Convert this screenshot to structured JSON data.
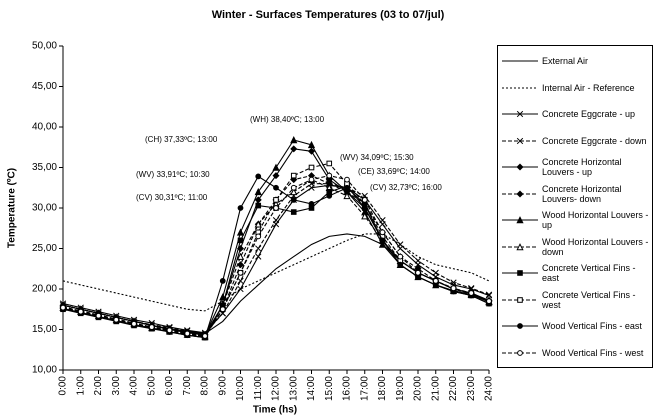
{
  "chart_data": {
    "type": "line",
    "title": "Winter - Surfaces Temperatures (03 to 07/jul)",
    "xlabel": "Time (hs)",
    "ylabel": "Temperature (ºC)",
    "x": [
      0,
      1,
      2,
      3,
      4,
      5,
      6,
      7,
      8,
      9,
      10,
      11,
      12,
      13,
      14,
      15,
      16,
      17,
      18,
      19,
      20,
      21,
      22,
      23,
      24
    ],
    "xlim": [
      0,
      24
    ],
    "xticks": [
      {
        "value": 0,
        "label": "0:00"
      },
      {
        "value": 1,
        "label": "1:00"
      },
      {
        "value": 2,
        "label": "2:00"
      },
      {
        "value": 3,
        "label": "3:00"
      },
      {
        "value": 4,
        "label": "4:00"
      },
      {
        "value": 5,
        "label": "5:00"
      },
      {
        "value": 6,
        "label": "6:00"
      },
      {
        "value": 7,
        "label": "7:00"
      },
      {
        "value": 8,
        "label": "8:00"
      },
      {
        "value": 9,
        "label": "9:00"
      },
      {
        "value": 10,
        "label": "10:00"
      },
      {
        "value": 11,
        "label": "11:00"
      },
      {
        "value": 12,
        "label": "12:00"
      },
      {
        "value": 13,
        "label": "13:00"
      },
      {
        "value": 14,
        "label": "14:00"
      },
      {
        "value": 15,
        "label": "15:00"
      },
      {
        "value": 16,
        "label": "16:00"
      },
      {
        "value": 17,
        "label": "17:00"
      },
      {
        "value": 18,
        "label": "18:00"
      },
      {
        "value": 19,
        "label": "19:00"
      },
      {
        "value": 20,
        "label": "20:00"
      },
      {
        "value": 21,
        "label": "21:00"
      },
      {
        "value": 22,
        "label": "22:00"
      },
      {
        "value": 23,
        "label": "23:00"
      },
      {
        "value": 24,
        "label": "24:00"
      }
    ],
    "ylim": [
      10,
      50
    ],
    "yticks": [
      {
        "value": 10,
        "label": "10,00"
      },
      {
        "value": 15,
        "label": "15,00"
      },
      {
        "value": 20,
        "label": "20,00"
      },
      {
        "value": 25,
        "label": "25,00"
      },
      {
        "value": 30,
        "label": "30,00"
      },
      {
        "value": 35,
        "label": "35,00"
      },
      {
        "value": 40,
        "label": "40,00"
      },
      {
        "value": 45,
        "label": "45,00"
      },
      {
        "value": 50,
        "label": "50,00"
      }
    ],
    "grid": false,
    "legend": "right",
    "annotations": [
      "(WH) 38,40ºC; 13:00",
      "(CH) 37,33ºC; 13:00",
      "(WV) 33,91ºC; 10:30",
      "(CV) 30,31ºC; 11:00",
      "(WV) 34,09ºC; 15:30",
      "(CE) 33,69ºC; 14:00",
      "(CV) 32,73ºC; 16:00"
    ],
    "series": [
      {
        "name": "External Air",
        "color": "#000000",
        "dash": "solid",
        "marker": "none",
        "values": [
          18,
          17.5,
          17,
          16.5,
          16,
          15.5,
          15,
          14.8,
          14.5,
          16,
          18.5,
          20.5,
          22.5,
          24,
          25.5,
          26.5,
          26.8,
          26.5,
          25.5,
          23.5,
          22,
          21,
          20,
          19.5,
          18.5
        ]
      },
      {
        "name": "Internal Air - Reference",
        "color": "#000000",
        "dash": "dotted",
        "marker": "none",
        "values": [
          21,
          20.5,
          20,
          19.5,
          19,
          18.5,
          18,
          17.5,
          17.3,
          18.5,
          20,
          21,
          22,
          23,
          24,
          25,
          26,
          26.8,
          26.8,
          25.5,
          24,
          23,
          22.5,
          22,
          21
        ]
      },
      {
        "name": "Concrete Eggcrate - up",
        "color": "#000000",
        "dash": "solid",
        "marker": "x",
        "values": [
          18.2,
          17.7,
          17.2,
          16.7,
          16.2,
          15.8,
          15.3,
          14.9,
          14.6,
          17,
          20,
          24,
          28,
          31,
          32.5,
          32.8,
          32.5,
          31,
          28,
          25,
          23,
          21.5,
          20.5,
          20,
          19.2
        ]
      },
      {
        "name": "Concrete Eggcrate - down",
        "color": "#000000",
        "dash": "dashed",
        "marker": "x",
        "values": [
          18,
          17.5,
          17,
          16.5,
          16,
          15.6,
          15.2,
          14.8,
          14.5,
          17,
          21,
          25,
          28.5,
          31.5,
          33,
          33,
          32.5,
          31.5,
          28.5,
          25.5,
          23.5,
          22,
          20.8,
          20.1,
          19.3
        ]
      },
      {
        "name": "Concrete Horizontal Louvers - up",
        "color": "#000000",
        "dash": "solid",
        "marker": "diamond",
        "values": [
          18,
          17.5,
          17,
          16.5,
          16,
          15.5,
          15.1,
          14.7,
          14.4,
          18,
          25,
          31,
          34,
          37.3,
          37,
          33.5,
          32,
          30,
          26,
          23.5,
          22,
          21,
          20,
          19.5,
          18.6
        ]
      },
      {
        "name": "Concrete Horizontal Louvers- down",
        "color": "#000000",
        "dash": "dashed",
        "marker": "diamond",
        "values": [
          17.8,
          17.3,
          16.8,
          16.3,
          15.8,
          15.3,
          14.9,
          14.5,
          14.2,
          17.5,
          23,
          28,
          31,
          33.5,
          34,
          33,
          32,
          30.5,
          27,
          24,
          22.5,
          21,
          20,
          19.5,
          18.5
        ]
      },
      {
        "name": "Wood Horizontal Louvers - up",
        "color": "#000000",
        "dash": "solid",
        "marker": "triangle",
        "values": [
          18,
          17.5,
          17,
          16.5,
          16,
          15.5,
          15,
          14.6,
          14.3,
          19,
          27,
          32,
          35,
          38.4,
          37.8,
          34,
          32,
          29.5,
          25.5,
          23,
          21.5,
          20.5,
          19.8,
          19.3,
          18.4
        ]
      },
      {
        "name": "Wood Horizontal Louvers - down",
        "color": "#000000",
        "dash": "dashed",
        "marker": "triangle-open",
        "values": [
          17.7,
          17.2,
          16.7,
          16.2,
          15.7,
          15.2,
          14.8,
          14.4,
          14.1,
          18,
          24,
          28,
          30.5,
          32,
          33.5,
          32.5,
          31.5,
          29,
          26,
          23.5,
          22,
          21,
          20,
          19.4,
          18.5
        ]
      },
      {
        "name": "Concrete Vertical Fins - east",
        "color": "#000000",
        "dash": "solid",
        "marker": "square",
        "values": [
          17.5,
          17,
          16.5,
          16,
          15.5,
          15.1,
          14.7,
          14.3,
          14,
          18,
          26,
          30.3,
          30,
          29.5,
          30,
          32,
          32.7,
          30,
          26,
          23,
          21.5,
          20.5,
          19.7,
          19.2,
          18.2
        ]
      },
      {
        "name": "Concrete Vertical Fins - west",
        "color": "#000000",
        "dash": "dashed",
        "marker": "square-open",
        "values": [
          17.6,
          17.1,
          16.6,
          16.1,
          15.6,
          15.2,
          14.8,
          14.4,
          14.1,
          17.5,
          22,
          27,
          31,
          34,
          35,
          35.5,
          33,
          30.5,
          26.5,
          23.5,
          22,
          21,
          20,
          19.4,
          18.4
        ]
      },
      {
        "name": "Wood Vertical Fins - east",
        "color": "#000000",
        "dash": "solid",
        "marker": "circle",
        "values": [
          17.6,
          17.1,
          16.6,
          16.1,
          15.6,
          15.2,
          14.7,
          14.3,
          14,
          21,
          30,
          33.9,
          32.5,
          31,
          30.5,
          31.5,
          32.5,
          30.5,
          26,
          23,
          21.5,
          20.5,
          19.7,
          19.2,
          18.2
        ]
      },
      {
        "name": "Wood Vertical Fins - west",
        "color": "#000000",
        "dash": "dashed",
        "marker": "circle-open",
        "values": [
          17.7,
          17.2,
          16.7,
          16.2,
          15.7,
          15.3,
          14.9,
          14.5,
          14.2,
          17.5,
          22,
          26.5,
          30,
          32.5,
          33.5,
          34,
          33.5,
          31,
          27,
          24,
          22,
          21,
          20.1,
          19.5,
          18.5
        ]
      }
    ]
  }
}
